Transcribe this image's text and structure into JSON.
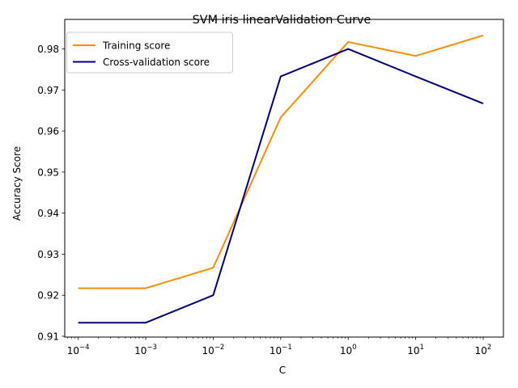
{
  "chart_data": {
    "type": "line",
    "title": "SVM iris linearValidation Curve",
    "xlabel": "C",
    "ylabel": "Accuracy Score",
    "x_scale": "log",
    "x": [
      0.0001,
      0.001,
      0.01,
      0.1,
      1,
      10,
      100
    ],
    "x_tick_labels": [
      {
        "base": "10",
        "exp": "−4"
      },
      {
        "base": "10",
        "exp": "−3"
      },
      {
        "base": "10",
        "exp": "−2"
      },
      {
        "base": "10",
        "exp": "−1"
      },
      {
        "base": "10",
        "exp": "0"
      },
      {
        "base": "10",
        "exp": "1"
      },
      {
        "base": "10",
        "exp": "2"
      }
    ],
    "y_ticks": [
      0.91,
      0.92,
      0.93,
      0.94,
      0.95,
      0.96,
      0.97,
      0.98
    ],
    "y_tick_labels": [
      "0.91",
      "0.92",
      "0.93",
      "0.94",
      "0.95",
      "0.96",
      "0.97",
      "0.98"
    ],
    "xlim_exp": [
      -4.2,
      2.3
    ],
    "ylim": [
      0.9098,
      0.9872
    ],
    "grid": false,
    "legend_position": "top-left",
    "series": [
      {
        "name": "Training score",
        "color": "#ff8c00",
        "values": [
          0.9217,
          0.9217,
          0.9267,
          0.9633,
          0.9817,
          0.9783,
          0.9833
        ]
      },
      {
        "name": "Cross-validation score",
        "color": "#000080",
        "values": [
          0.9133,
          0.9133,
          0.92,
          0.9733,
          0.98,
          0.9733,
          0.9667
        ]
      }
    ]
  }
}
